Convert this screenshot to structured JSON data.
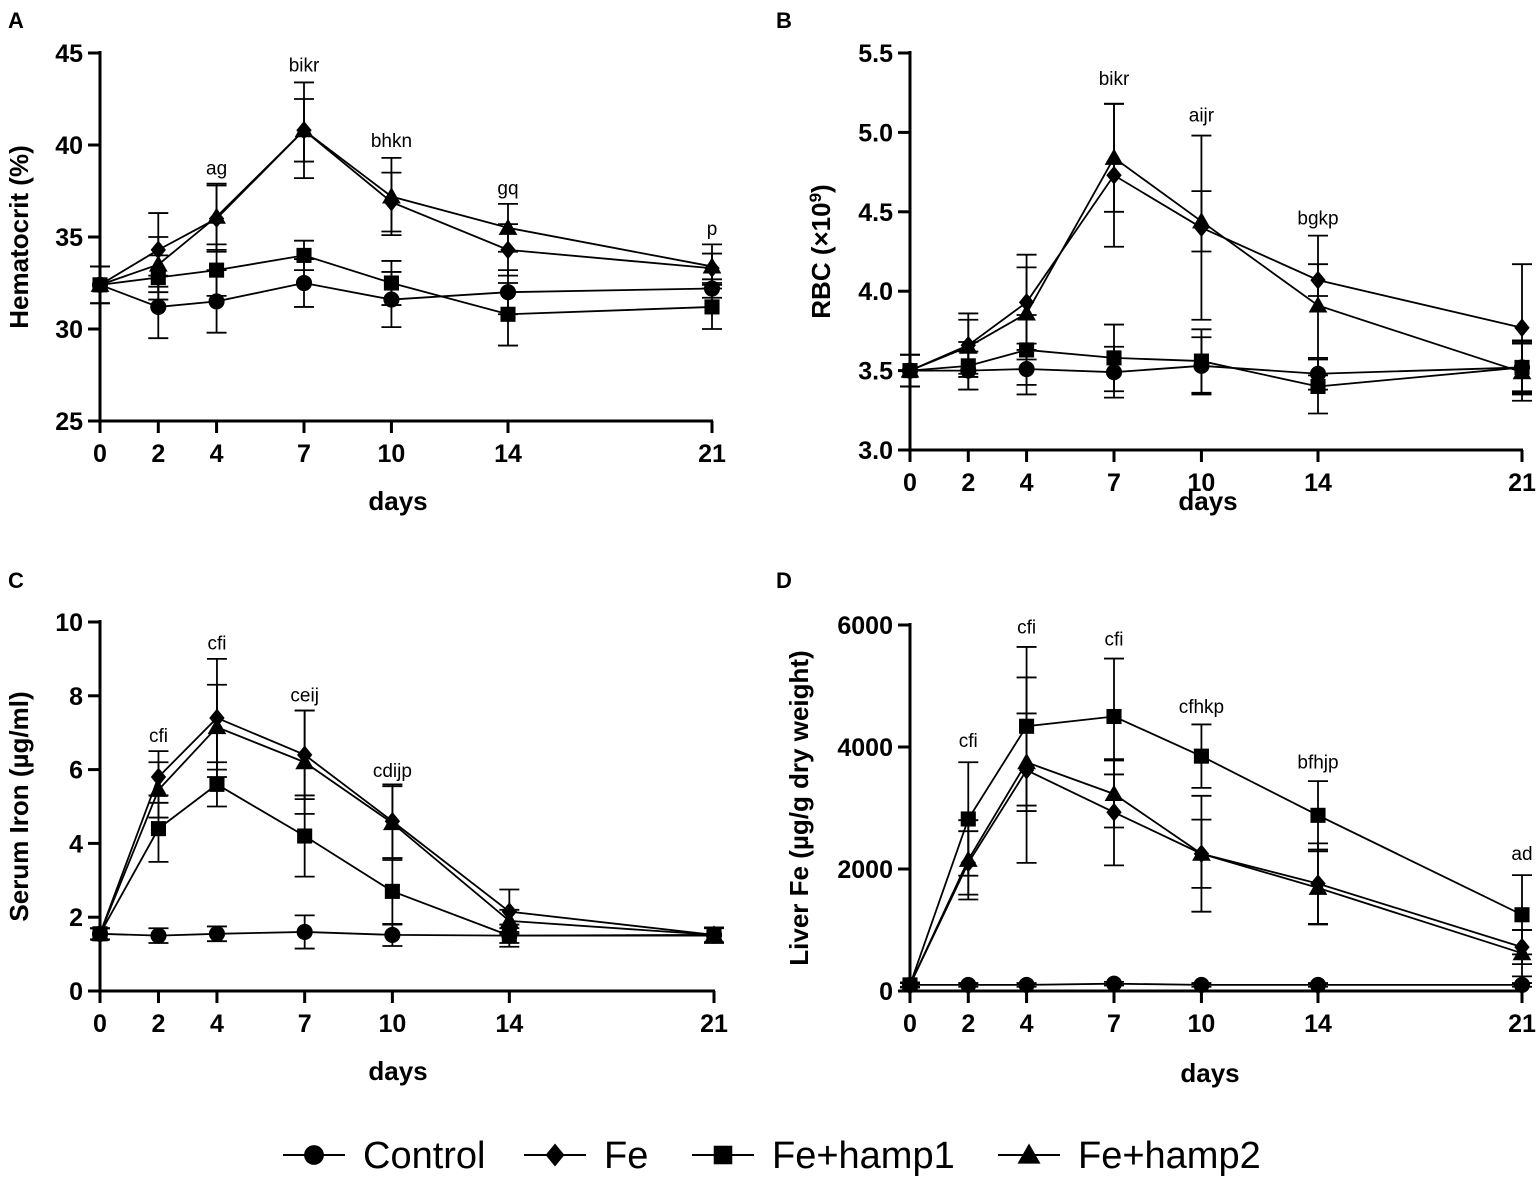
{
  "legend": [
    {
      "name": "Control",
      "marker": "circle"
    },
    {
      "name": "Fe",
      "marker": "diamond"
    },
    {
      "name": "Fe+hamp1",
      "marker": "square"
    },
    {
      "name": "Fe+hamp2",
      "marker": "triangle"
    }
  ],
  "chart_data": [
    {
      "panel": "A",
      "type": "line",
      "xlabel": "days",
      "ylabel": "Hematocrit (%)",
      "x": [
        0,
        2,
        4,
        7,
        10,
        14,
        21
      ],
      "xticks": [
        0,
        2,
        4,
        7,
        10,
        14,
        21
      ],
      "ylim": [
        25,
        45
      ],
      "yticks": [
        25,
        30,
        35,
        40,
        45
      ],
      "ytick_labels": [
        "25",
        "30",
        "35",
        "40",
        "45"
      ],
      "series": [
        {
          "name": "Control",
          "values": [
            32.4,
            31.2,
            31.5,
            32.5,
            31.6,
            32.0,
            32.2
          ],
          "errors": [
            1.0,
            1.7,
            1.7,
            1.3,
            1.5,
            1.2,
            0.5
          ]
        },
        {
          "name": "Fe",
          "values": [
            32.4,
            34.3,
            36.0,
            40.8,
            36.9,
            34.3,
            33.3
          ],
          "errors": [
            1.0,
            2.0,
            1.8,
            1.7,
            1.6,
            1.4,
            0.8
          ]
        },
        {
          "name": "Fe+hamp1",
          "values": [
            32.4,
            32.8,
            33.2,
            34.0,
            32.5,
            30.8,
            31.2
          ],
          "errors": [
            1.0,
            1.2,
            1.4,
            0.8,
            1.2,
            1.7,
            1.2
          ]
        },
        {
          "name": "Fe+hamp2",
          "values": [
            32.4,
            33.5,
            36.1,
            40.8,
            37.2,
            35.5,
            33.4
          ],
          "errors": [
            1.0,
            1.5,
            1.8,
            2.6,
            2.1,
            1.3,
            1.2
          ]
        }
      ],
      "annotations": [
        {
          "x": 4,
          "y": 38.4,
          "text": "ag"
        },
        {
          "x": 7,
          "y": 44.0,
          "text": "bikr"
        },
        {
          "x": 10,
          "y": 39.9,
          "text": "bhkn"
        },
        {
          "x": 14,
          "y": 37.3,
          "text": "gq"
        },
        {
          "x": 21,
          "y": 35.1,
          "text": "p"
        }
      ]
    },
    {
      "panel": "B",
      "type": "line",
      "xlabel": "days",
      "ylabel": "RBC (×10",
      "ylabel_sup": "9",
      "ylabel_end": ")",
      "x": [
        0,
        2,
        4,
        7,
        10,
        14,
        21
      ],
      "xticks": [
        0,
        2,
        4,
        7,
        10,
        14,
        21
      ],
      "ylim": [
        3.0,
        5.5
      ],
      "yticks": [
        3.0,
        3.5,
        4.0,
        4.5,
        5.0,
        5.5
      ],
      "ytick_labels": [
        "3.0",
        "3.5",
        "4.0",
        "4.5",
        "5.0",
        "5.5"
      ],
      "series": [
        {
          "name": "Control",
          "values": [
            3.5,
            3.5,
            3.51,
            3.49,
            3.53,
            3.48,
            3.52
          ],
          "errors": [
            0.1,
            0.12,
            0.16,
            0.16,
            0.18,
            0.1,
            0.17
          ]
        },
        {
          "name": "Fe",
          "values": [
            3.5,
            3.66,
            3.93,
            4.73,
            4.4,
            4.07,
            3.77
          ],
          "errors": [
            0.1,
            0.2,
            0.3,
            0.45,
            0.58,
            0.1,
            0.4
          ]
        },
        {
          "name": "Fe+hamp1",
          "values": [
            3.5,
            3.53,
            3.63,
            3.58,
            3.56,
            3.4,
            3.52
          ],
          "errors": [
            0.1,
            0.15,
            0.22,
            0.21,
            0.2,
            0.17,
            0.16
          ]
        },
        {
          "name": "Fe+hamp2",
          "values": [
            3.5,
            3.65,
            3.86,
            4.84,
            4.44,
            3.91,
            3.49
          ],
          "errors": [
            0.1,
            0.17,
            0.29,
            0.34,
            0.19,
            0.44,
            0.18
          ]
        }
      ],
      "annotations": [
        {
          "x": 7,
          "y": 5.3,
          "text": "bikr"
        },
        {
          "x": 10,
          "y": 5.07,
          "text": "aijr"
        },
        {
          "x": 14,
          "y": 4.42,
          "text": "bgkp"
        }
      ]
    },
    {
      "panel": "C",
      "type": "line",
      "xlabel": "days",
      "ylabel": "Serum Iron (µg/ml)",
      "x": [
        0,
        2,
        4,
        7,
        10,
        14,
        21
      ],
      "xticks": [
        0,
        2,
        4,
        7,
        10,
        14,
        21
      ],
      "ylim": [
        0,
        10
      ],
      "yticks": [
        0,
        2,
        4,
        6,
        8,
        10
      ],
      "ytick_labels": [
        "0",
        "2",
        "4",
        "6",
        "8",
        "10"
      ],
      "series": [
        {
          "name": "Control",
          "values": [
            1.55,
            1.5,
            1.55,
            1.6,
            1.52,
            1.5,
            1.52
          ],
          "errors": [
            0.15,
            0.2,
            0.2,
            0.45,
            0.3,
            0.2,
            0.2
          ]
        },
        {
          "name": "Fe",
          "values": [
            1.55,
            5.8,
            7.4,
            6.4,
            4.6,
            2.15,
            1.52
          ],
          "errors": [
            0.15,
            0.7,
            1.6,
            1.2,
            1.0,
            0.6,
            0.2
          ]
        },
        {
          "name": "Fe+hamp1",
          "values": [
            1.55,
            4.4,
            5.6,
            4.2,
            2.7,
            1.5,
            1.5
          ],
          "errors": [
            0.15,
            0.9,
            0.6,
            1.1,
            0.9,
            0.3,
            0.2
          ]
        },
        {
          "name": "Fe+hamp2",
          "values": [
            1.55,
            5.45,
            7.15,
            6.2,
            4.55,
            1.9,
            1.52
          ],
          "errors": [
            0.15,
            0.75,
            1.15,
            1.4,
            1.0,
            0.3,
            0.2
          ]
        }
      ],
      "annotations": [
        {
          "x": 2,
          "y": 6.75,
          "text": "cfi"
        },
        {
          "x": 4,
          "y": 9.25,
          "text": "cfi"
        },
        {
          "x": 7,
          "y": 7.85,
          "text": "ceij"
        },
        {
          "x": 10,
          "y": 5.8,
          "text": "cdijp"
        }
      ]
    },
    {
      "panel": "D",
      "type": "line",
      "xlabel": "days",
      "ylabel": "Liver Fe (µg/g dry weight)",
      "x": [
        0,
        2,
        4,
        7,
        10,
        14,
        21
      ],
      "xticks": [
        0,
        2,
        4,
        7,
        10,
        14,
        21
      ],
      "ylim": [
        0,
        6000
      ],
      "yticks": [
        0,
        2000,
        4000,
        6000
      ],
      "ytick_labels": [
        "0",
        "2000",
        "4000",
        "6000"
      ],
      "series": [
        {
          "name": "Control",
          "values": [
            100,
            100,
            100,
            120,
            100,
            100,
            100
          ],
          "errors": [
            30,
            30,
            30,
            30,
            30,
            30,
            30
          ]
        },
        {
          "name": "Fe",
          "values": [
            100,
            2100,
            3620,
            2930,
            2250,
            1760,
            720
          ],
          "errors": [
            40,
            520,
            1520,
            870,
            950,
            660,
            280
          ]
        },
        {
          "name": "Fe+hamp1",
          "values": [
            100,
            2820,
            4340,
            4500,
            3850,
            2880,
            1250
          ],
          "errors": [
            40,
            930,
            1300,
            950,
            520,
            560,
            650
          ]
        },
        {
          "name": "Fe+hamp2",
          "values": [
            100,
            2150,
            3750,
            3230,
            2250,
            1690,
            620
          ],
          "errors": [
            40,
            650,
            800,
            550,
            560,
            600,
            380
          ]
        }
      ],
      "annotations": [
        {
          "x": 2,
          "y": 4000,
          "text": "cfi"
        },
        {
          "x": 4,
          "y": 5860,
          "text": "cfi"
        },
        {
          "x": 7,
          "y": 5660,
          "text": "cfi"
        },
        {
          "x": 10,
          "y": 4560,
          "text": "cfhkp"
        },
        {
          "x": 14,
          "y": 3650,
          "text": "bfhjp"
        },
        {
          "x": 21,
          "y": 2150,
          "text": "ad"
        }
      ]
    }
  ]
}
